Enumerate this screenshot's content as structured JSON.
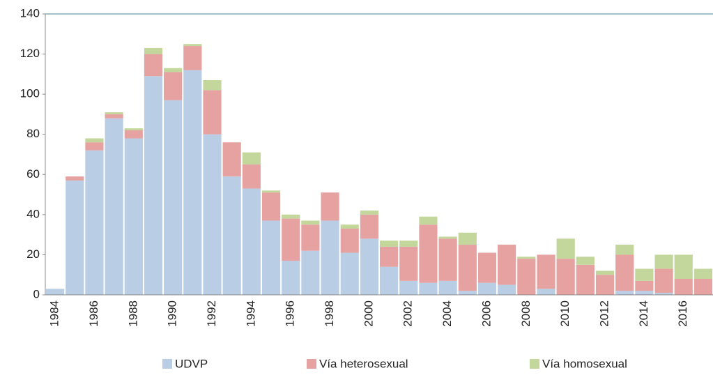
{
  "chart_data": {
    "type": "stacked_bar",
    "categories": [
      "1984",
      null,
      "1986",
      null,
      "1988",
      null,
      "1990",
      null,
      "1992",
      null,
      "1994",
      null,
      "1996",
      null,
      "1998",
      null,
      "2000",
      null,
      "2002",
      null,
      "2004",
      null,
      "2006",
      null,
      "2008",
      null,
      "2010",
      null,
      "2012",
      null,
      "2014",
      null,
      "2016",
      null
    ],
    "series": [
      {
        "name": "UDVP",
        "color": "#b9cde5",
        "values": [
          3,
          57,
          72,
          88,
          78,
          109,
          97,
          112,
          80,
          59,
          53,
          37,
          17,
          22,
          37,
          21,
          28,
          14,
          7,
          6,
          7,
          2,
          6,
          5,
          0,
          3,
          0,
          0,
          0,
          2,
          2,
          1,
          0,
          0
        ]
      },
      {
        "name": "Vía heterosexual",
        "color": "#e6a1a1",
        "values": [
          0,
          2,
          4,
          2,
          4,
          11,
          14,
          12,
          22,
          17,
          12,
          14,
          21,
          13,
          14,
          12,
          12,
          10,
          17,
          29,
          21,
          23,
          15,
          20,
          18,
          17,
          18,
          15,
          10,
          18,
          5,
          12,
          8,
          8
        ]
      },
      {
        "name": "Vía homosexual",
        "color": "#c3d69b",
        "values": [
          0,
          0,
          2,
          1,
          1,
          3,
          2,
          1,
          5,
          0,
          6,
          1,
          2,
          2,
          0,
          2,
          2,
          3,
          3,
          4,
          1,
          6,
          0,
          0,
          1,
          0,
          10,
          4,
          2,
          5,
          6,
          7,
          12,
          5
        ]
      }
    ],
    "ylim": [
      0,
      140
    ],
    "yticks": [
      0,
      20,
      40,
      60,
      80,
      100,
      120,
      140
    ],
    "grid": false,
    "legend": "bottom"
  }
}
